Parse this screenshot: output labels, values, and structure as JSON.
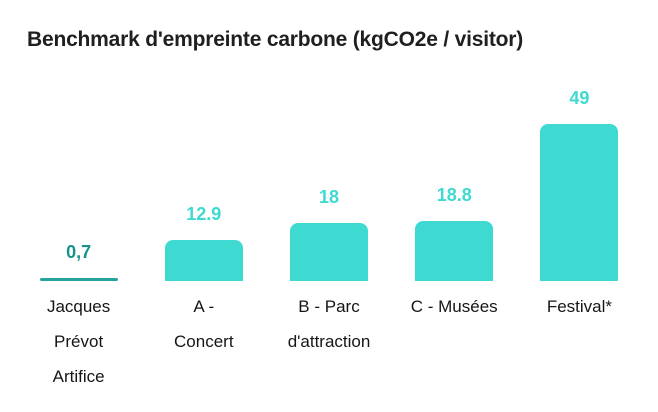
{
  "page": {
    "background": "#ffffff"
  },
  "chart_data": {
    "type": "bar",
    "title": "Benchmark d'empreinte carbone (kgCO2e / visitor)",
    "categories": [
      "Jacques Prévot Artifice",
      "A - Concert",
      "B - Parc d'attraction",
      "C - Musées",
      "Festival*"
    ],
    "category_lines": [
      [
        "Jacques",
        "Prévot",
        "Artifice"
      ],
      [
        "A -",
        "Concert"
      ],
      [
        "B - Parc",
        "d'attraction"
      ],
      [
        "C - Musées"
      ],
      [
        "Festival*"
      ]
    ],
    "values": [
      0.7,
      12.9,
      18,
      18.8,
      49
    ],
    "value_labels": [
      "0,7",
      "12.9",
      "18",
      "18.8",
      "49"
    ],
    "xlabel": "",
    "ylabel": "",
    "ylim": [
      0,
      49
    ],
    "grid": false,
    "legend": false,
    "colors": {
      "bar": "#3edad2",
      "first_bar": "#27a39e",
      "value_label": "#3edad2",
      "first_value_label": "#17928e",
      "title": "#1f1f1f",
      "category_label": "#161616"
    }
  }
}
